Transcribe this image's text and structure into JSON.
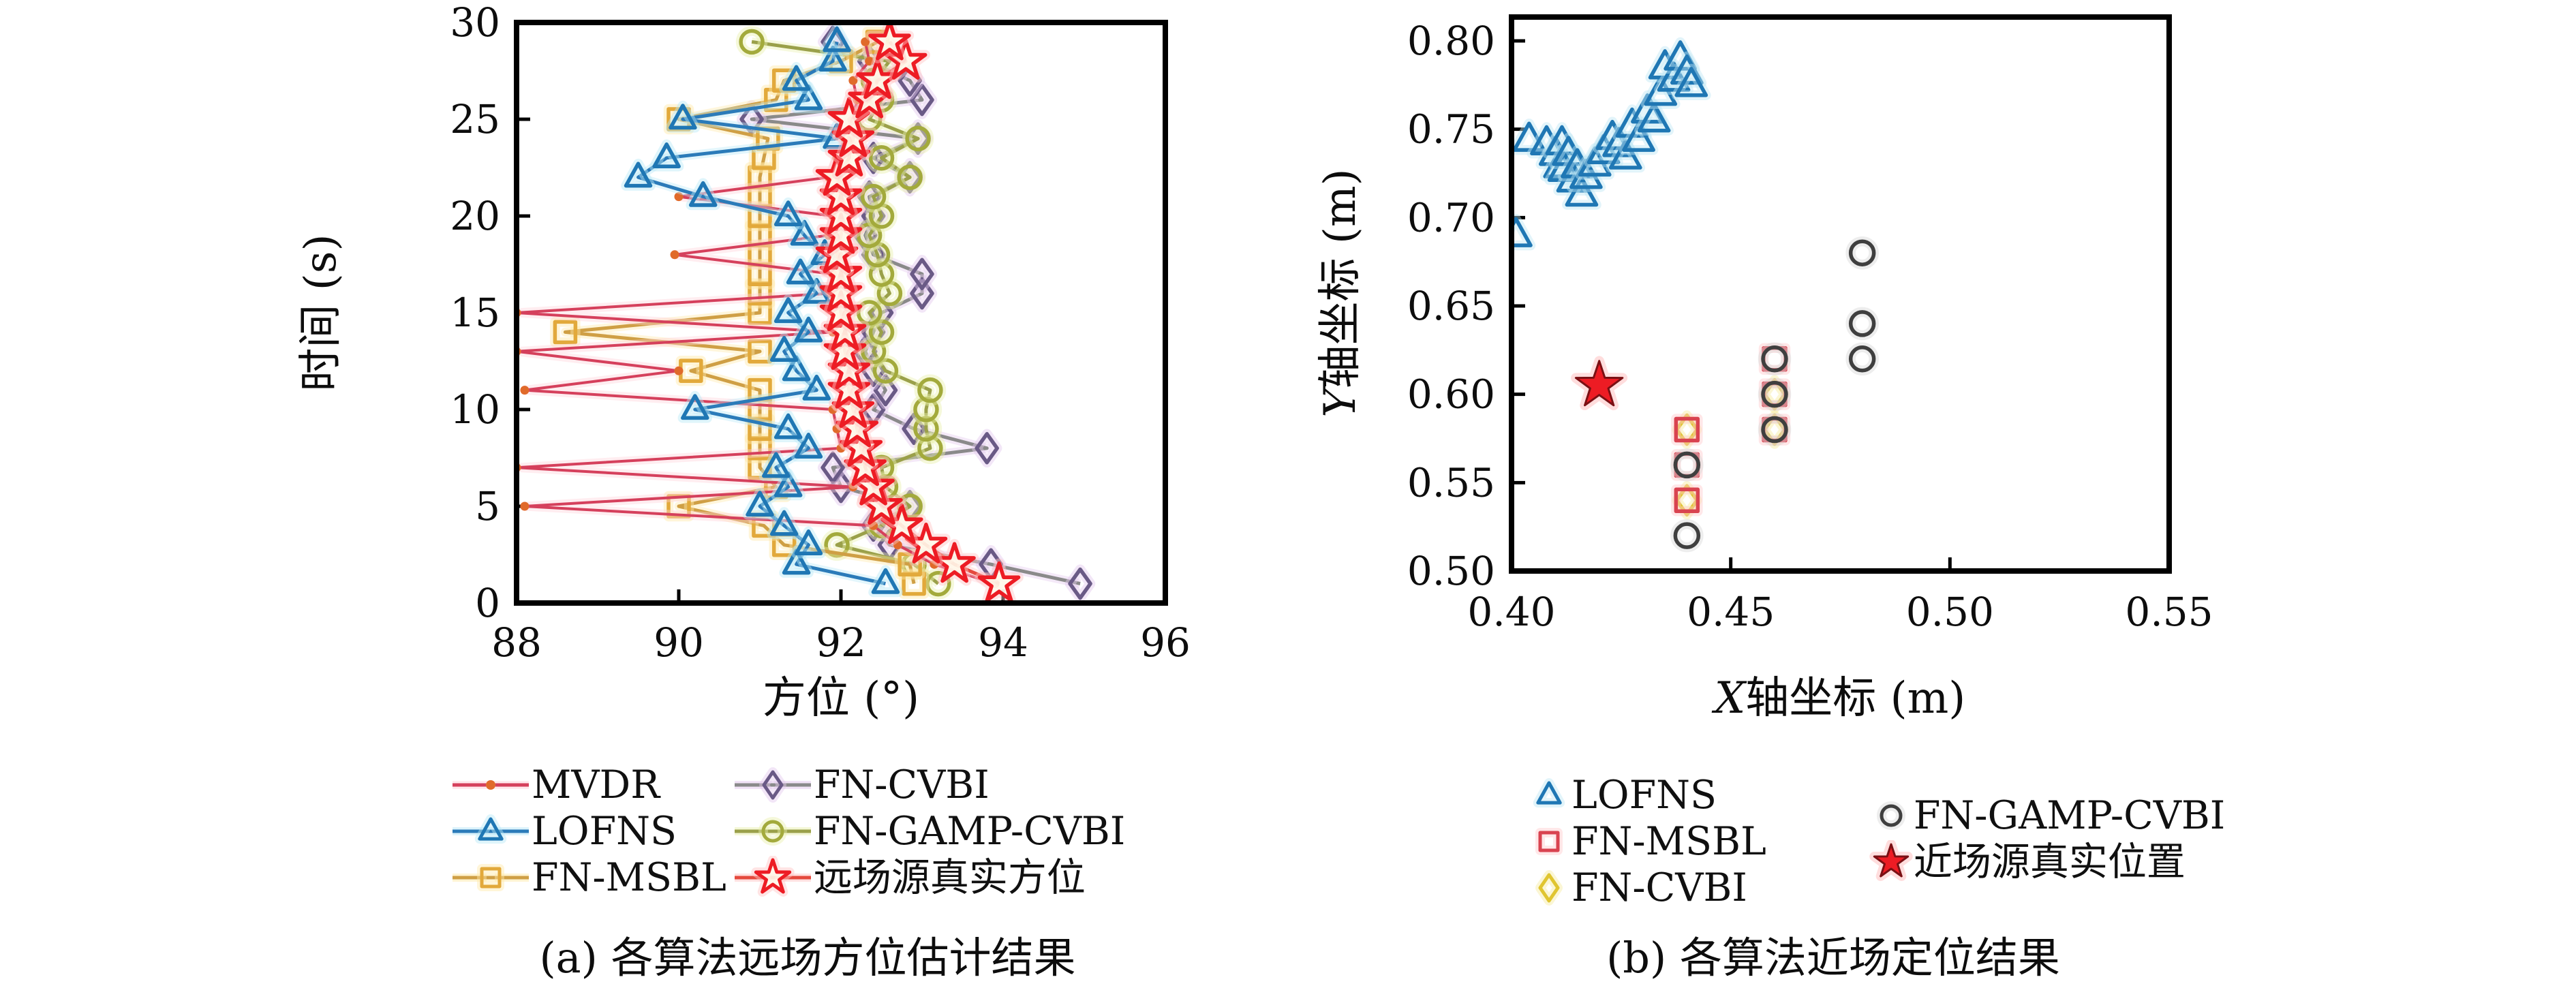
{
  "figure": {
    "background": "#ffffff",
    "frame_color": "#000000",
    "text_color": "#111111"
  },
  "chart_data": [
    {
      "type": "line",
      "title": "(a) 各算法远场方位估计结果",
      "xlabel": "方位 (°)",
      "ylabel": "时间 (s)",
      "xlim": [
        88,
        96
      ],
      "ylim": [
        0,
        30
      ],
      "xticks": [
        "88",
        "90",
        "92",
        "94",
        "96"
      ],
      "xtick_values": [
        88,
        90,
        92,
        94,
        96
      ],
      "yticks": [
        "0",
        "5",
        "10",
        "15",
        "20",
        "25",
        "30"
      ],
      "ytick_values": [
        0,
        5,
        10,
        15,
        20,
        25,
        30
      ],
      "grid": false,
      "legend_position": "below, two columns",
      "legend_columns": [
        [
          "MVDR",
          "LOFNS",
          "FN-MSBL"
        ],
        [
          "FN-CVBI",
          "FN-GAMP-CVBI",
          "远场源真实方位"
        ]
      ],
      "series": [
        {
          "name": "FN-CVBI",
          "marker": "diamond",
          "line": true,
          "color": "#6a5a86",
          "line_color": "#8a8a8a",
          "halo": "#e3c7ee",
          "points": [
            [
              94.95,
              1
            ],
            [
              93.85,
              2
            ],
            [
              92.6,
              3
            ],
            [
              92.4,
              4
            ],
            [
              92.85,
              5
            ],
            [
              92.0,
              6
            ],
            [
              91.9,
              7
            ],
            [
              93.8,
              8
            ],
            [
              92.9,
              9
            ],
            [
              92.4,
              10
            ],
            [
              92.55,
              11
            ],
            [
              92.4,
              12
            ],
            [
              92.3,
              13
            ],
            [
              92.4,
              14
            ],
            [
              92.5,
              15
            ],
            [
              93.0,
              16
            ],
            [
              93.0,
              17
            ],
            [
              92.4,
              18
            ],
            [
              92.3,
              19
            ],
            [
              92.4,
              20
            ],
            [
              92.35,
              21
            ],
            [
              92.85,
              22
            ],
            [
              92.4,
              23
            ],
            [
              92.95,
              24
            ],
            [
              90.9,
              25
            ],
            [
              93.0,
              26
            ],
            [
              92.85,
              27
            ],
            [
              92.35,
              28
            ],
            [
              91.9,
              29
            ]
          ]
        },
        {
          "name": "FN-GAMP-CVBI",
          "marker": "circle",
          "line": true,
          "color": "#a3aa3c",
          "line_color": "#9aa04a",
          "halo": "#e9efad",
          "points": [
            [
              93.2,
              1
            ],
            [
              92.9,
              2
            ],
            [
              91.95,
              3
            ],
            [
              92.5,
              4
            ],
            [
              92.85,
              5
            ],
            [
              92.55,
              6
            ],
            [
              92.5,
              7
            ],
            [
              93.1,
              8
            ],
            [
              93.05,
              9
            ],
            [
              93.05,
              10
            ],
            [
              93.1,
              11
            ],
            [
              92.55,
              12
            ],
            [
              92.4,
              13
            ],
            [
              92.5,
              14
            ],
            [
              92.35,
              15
            ],
            [
              92.6,
              16
            ],
            [
              92.5,
              17
            ],
            [
              92.45,
              18
            ],
            [
              92.35,
              19
            ],
            [
              92.5,
              20
            ],
            [
              92.4,
              21
            ],
            [
              92.85,
              22
            ],
            [
              92.5,
              23
            ],
            [
              92.95,
              24
            ],
            [
              92.35,
              25
            ],
            [
              92.5,
              26
            ],
            [
              92.4,
              27
            ],
            [
              92.6,
              28
            ],
            [
              90.9,
              29
            ]
          ]
        },
        {
          "name": "FN-MSBL",
          "marker": "square",
          "line": true,
          "color": "#e2a93b",
          "line_color": "#cf9f45",
          "halo": "#ffe9a8",
          "points": [
            [
              92.9,
              1
            ],
            [
              92.85,
              2
            ],
            [
              91.3,
              3
            ],
            [
              91.05,
              4
            ],
            [
              90.0,
              5
            ],
            [
              91.2,
              6
            ],
            [
              91.0,
              7
            ],
            [
              91.0,
              8
            ],
            [
              91.0,
              9
            ],
            [
              91.0,
              10
            ],
            [
              91.0,
              11
            ],
            [
              90.15,
              12
            ],
            [
              91.0,
              13
            ],
            [
              88.6,
              14
            ],
            [
              91.0,
              15
            ],
            [
              91.0,
              16
            ],
            [
              91.0,
              17
            ],
            [
              91.0,
              18
            ],
            [
              91.0,
              19
            ],
            [
              91.0,
              20
            ],
            [
              91.0,
              21
            ],
            [
              91.0,
              22
            ],
            [
              91.05,
              23
            ],
            [
              91.1,
              24
            ],
            [
              90.0,
              25
            ],
            [
              91.2,
              26
            ],
            [
              91.3,
              27
            ],
            [
              92.0,
              28
            ],
            [
              92.45,
              29
            ]
          ]
        },
        {
          "name": "MVDR",
          "marker": "dot",
          "line": true,
          "color": "#e06a2a",
          "line_color": "#d5405c",
          "halo": "#ffd2da",
          "points": [
            [
              93.9,
              1
            ],
            [
              93.15,
              2
            ],
            [
              92.7,
              3
            ],
            [
              92.4,
              4
            ],
            [
              88.1,
              5
            ],
            [
              92.15,
              6
            ],
            [
              88.0,
              7
            ],
            [
              92.0,
              8
            ],
            [
              91.95,
              9
            ],
            [
              91.9,
              10
            ],
            [
              88.1,
              11
            ],
            [
              90.0,
              12
            ],
            [
              88.0,
              13
            ],
            [
              91.9,
              14
            ],
            [
              88.0,
              15
            ],
            [
              91.85,
              16
            ],
            [
              91.9,
              17
            ],
            [
              89.95,
              18
            ],
            [
              91.85,
              19
            ],
            [
              91.9,
              20
            ],
            [
              90.0,
              21
            ],
            [
              91.85,
              22
            ],
            [
              91.95,
              23
            ],
            [
              92.05,
              24
            ],
            [
              92.15,
              25
            ],
            [
              92.2,
              26
            ],
            [
              92.15,
              27
            ],
            [
              92.35,
              28
            ],
            [
              92.3,
              29
            ]
          ]
        },
        {
          "name": "LOFNS",
          "marker": "triangle",
          "line": true,
          "color": "#1f77b4",
          "line_color": "#2b7bb9",
          "halo": "#b9e8f7",
          "points": [
            [
              92.55,
              1
            ],
            [
              91.45,
              2
            ],
            [
              91.6,
              3
            ],
            [
              91.3,
              4
            ],
            [
              91.0,
              5
            ],
            [
              91.35,
              6
            ],
            [
              91.2,
              7
            ],
            [
              91.6,
              8
            ],
            [
              91.35,
              9
            ],
            [
              90.2,
              10
            ],
            [
              91.7,
              11
            ],
            [
              91.45,
              12
            ],
            [
              91.3,
              13
            ],
            [
              91.6,
              14
            ],
            [
              91.35,
              15
            ],
            [
              91.7,
              16
            ],
            [
              91.5,
              17
            ],
            [
              91.8,
              18
            ],
            [
              91.55,
              19
            ],
            [
              91.35,
              20
            ],
            [
              90.3,
              21
            ],
            [
              89.5,
              22
            ],
            [
              89.85,
              23
            ],
            [
              91.95,
              24
            ],
            [
              90.05,
              25
            ],
            [
              91.6,
              26
            ],
            [
              91.45,
              27
            ],
            [
              91.9,
              28
            ],
            [
              91.95,
              29
            ]
          ]
        },
        {
          "name": "远场源真实方位",
          "marker": "star",
          "line": true,
          "color": "#ed1c24",
          "line_color": "#e5493d",
          "halo": "#ffc4c4",
          "points": [
            [
              93.95,
              1
            ],
            [
              93.4,
              2
            ],
            [
              93.05,
              3
            ],
            [
              92.75,
              4
            ],
            [
              92.5,
              5
            ],
            [
              92.4,
              6
            ],
            [
              92.3,
              7
            ],
            [
              92.25,
              8
            ],
            [
              92.2,
              9
            ],
            [
              92.15,
              10
            ],
            [
              92.1,
              11
            ],
            [
              92.1,
              12
            ],
            [
              92.05,
              13
            ],
            [
              92.05,
              14
            ],
            [
              92.0,
              15
            ],
            [
              92.0,
              16
            ],
            [
              92.0,
              17
            ],
            [
              91.95,
              18
            ],
            [
              92.0,
              19
            ],
            [
              92.0,
              20
            ],
            [
              92.0,
              21
            ],
            [
              91.95,
              22
            ],
            [
              92.1,
              23
            ],
            [
              92.15,
              24
            ],
            [
              92.1,
              25
            ],
            [
              92.35,
              26
            ],
            [
              92.45,
              27
            ],
            [
              92.8,
              28
            ],
            [
              92.6,
              29
            ]
          ]
        }
      ]
    },
    {
      "type": "scatter",
      "title": "(b) 各算法近场定位结果",
      "xlabel": "X轴坐标 (m)",
      "ylabel": "Y轴坐标 (m)",
      "xlabel_italic_first": true,
      "ylabel_italic_first": true,
      "xlim": [
        0.4,
        0.55
      ],
      "ylim": [
        0.5,
        0.8
      ],
      "xticks": [
        "0.40",
        "0.45",
        "0.50",
        "0.55"
      ],
      "xtick_values": [
        0.4,
        0.45,
        0.5,
        0.55
      ],
      "yticks": [
        "0.50",
        "0.55",
        "0.60",
        "0.65",
        "0.70",
        "0.75",
        "0.80"
      ],
      "ytick_values": [
        0.5,
        0.55,
        0.6,
        0.65,
        0.7,
        0.75,
        0.8
      ],
      "grid": false,
      "legend_position": "below, two columns",
      "legend_columns": [
        [
          "LOFNS",
          "FN-MSBL",
          "FN-CVBI"
        ],
        [
          "FN-GAMP-CVBI",
          "近场源真实位置"
        ]
      ],
      "series": [
        {
          "name": "FN-CVBI",
          "marker": "diamond",
          "line": false,
          "color": "#e0c531",
          "halo": "#f7eba0",
          "points": [
            [
              0.44,
              0.58
            ],
            [
              0.44,
              0.54
            ],
            [
              0.46,
              0.6
            ],
            [
              0.46,
              0.58
            ]
          ]
        },
        {
          "name": "FN-MSBL",
          "marker": "square",
          "line": false,
          "color": "#d94350",
          "halo": "#ffc9cc",
          "points": [
            [
              0.44,
              0.58
            ],
            [
              0.44,
              0.56
            ],
            [
              0.44,
              0.54
            ],
            [
              0.46,
              0.62
            ],
            [
              0.46,
              0.6
            ],
            [
              0.46,
              0.58
            ]
          ]
        },
        {
          "name": "FN-GAMP-CVBI",
          "marker": "circle",
          "line": false,
          "color": "#3f3f3f",
          "halo": "#d8d8d8",
          "points": [
            [
              0.44,
              0.52
            ],
            [
              0.44,
              0.56
            ],
            [
              0.46,
              0.58
            ],
            [
              0.46,
              0.6
            ],
            [
              0.46,
              0.62
            ],
            [
              0.48,
              0.62
            ],
            [
              0.48,
              0.64
            ],
            [
              0.48,
              0.68
            ]
          ]
        },
        {
          "name": "LOFNS",
          "marker": "triangle",
          "line": false,
          "color": "#1f77b4",
          "halo": "#bfe6f5",
          "points": [
            [
              0.401,
              0.69
            ],
            [
              0.404,
              0.744
            ],
            [
              0.408,
              0.742
            ],
            [
              0.41,
              0.736
            ],
            [
              0.411,
              0.729
            ],
            [
              0.4115,
              0.742
            ],
            [
              0.412,
              0.727
            ],
            [
              0.413,
              0.736
            ],
            [
              0.414,
              0.721
            ],
            [
              0.415,
              0.729
            ],
            [
              0.416,
              0.713
            ],
            [
              0.417,
              0.723
            ],
            [
              0.419,
              0.73
            ],
            [
              0.421,
              0.737
            ],
            [
              0.423,
              0.745
            ],
            [
              0.4245,
              0.741
            ],
            [
              0.426,
              0.734
            ],
            [
              0.4275,
              0.752
            ],
            [
              0.429,
              0.744
            ],
            [
              0.431,
              0.76
            ],
            [
              0.4325,
              0.755
            ],
            [
              0.434,
              0.77
            ],
            [
              0.435,
              0.785
            ],
            [
              0.437,
              0.778
            ],
            [
              0.4385,
              0.79
            ],
            [
              0.44,
              0.782
            ],
            [
              0.441,
              0.775
            ]
          ]
        },
        {
          "name": "近场源真实位置",
          "marker": "star-filled",
          "line": false,
          "color": "#ed1c24",
          "halo": "#ffb3b3",
          "points": [
            [
              0.42,
              0.605
            ]
          ]
        }
      ]
    }
  ]
}
